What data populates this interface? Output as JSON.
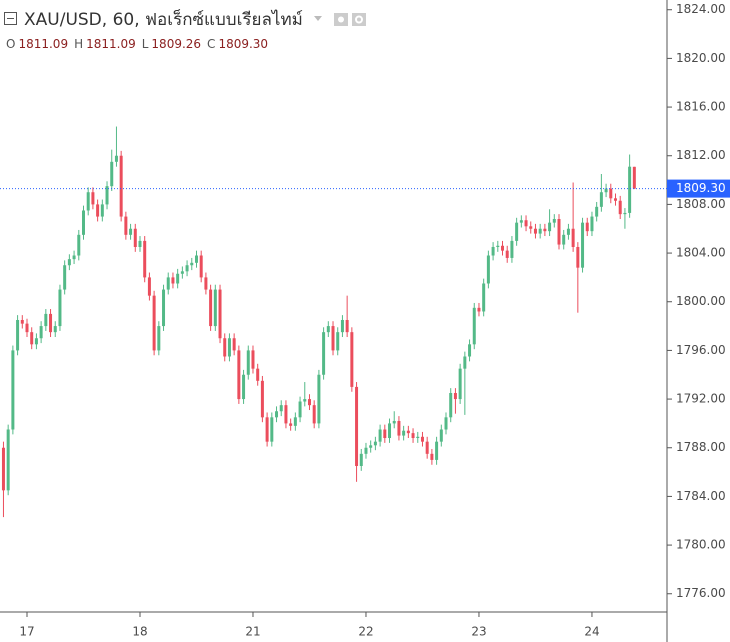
{
  "chart_data": {
    "type": "candlestick",
    "title": "XAU/USD, 60, ฟอเร็กซ์แบบเรียลไทม์",
    "legend": {
      "labels": [
        "O",
        "H",
        "L",
        "C"
      ],
      "values": [
        1811.09,
        1811.09,
        1809.26,
        1809.3
      ],
      "value_labels": [
        "1811.09",
        "1811.09",
        "1809.26",
        "1809.30"
      ]
    },
    "last_price": {
      "value": 1809.3,
      "label": "1809.30",
      "color": "#2962ff"
    },
    "up_color": "#53b987",
    "down_color": "#eb4d5c",
    "ylim": [
      1774.5,
      1824.8
    ],
    "yticks": [
      {
        "value": 1776,
        "label": "1776.00"
      },
      {
        "value": 1780,
        "label": "1780.00"
      },
      {
        "value": 1784,
        "label": "1784.00"
      },
      {
        "value": 1788,
        "label": "1788.00"
      },
      {
        "value": 1792,
        "label": "1792.00"
      },
      {
        "value": 1796,
        "label": "1796.00"
      },
      {
        "value": 1800,
        "label": "1800.00"
      },
      {
        "value": 1804,
        "label": "1804.00"
      },
      {
        "value": 1808,
        "label": "1808.00"
      },
      {
        "value": 1812,
        "label": "1812.00"
      },
      {
        "value": 1816,
        "label": "1816.00"
      },
      {
        "value": 1820,
        "label": "1820.00"
      },
      {
        "value": 1824,
        "label": "1824.00"
      }
    ],
    "categories": [
      null,
      null,
      null,
      null,
      null,
      "17",
      null,
      null,
      null,
      null,
      null,
      null,
      null,
      null,
      null,
      null,
      null,
      null,
      null,
      null,
      null,
      null,
      null,
      null,
      null,
      null,
      null,
      null,
      null,
      "18",
      null,
      null,
      null,
      null,
      null,
      null,
      null,
      null,
      null,
      null,
      null,
      null,
      null,
      null,
      null,
      null,
      null,
      null,
      null,
      null,
      null,
      null,
      null,
      "21",
      null,
      null,
      null,
      null,
      null,
      null,
      null,
      null,
      null,
      null,
      null,
      null,
      null,
      null,
      null,
      null,
      null,
      null,
      null,
      null,
      null,
      null,
      null,
      "22",
      null,
      null,
      null,
      null,
      null,
      null,
      null,
      null,
      null,
      null,
      null,
      null,
      null,
      null,
      null,
      null,
      null,
      null,
      null,
      null,
      null,
      null,
      null,
      "23",
      null,
      null,
      null,
      null,
      null,
      null,
      null,
      null,
      null,
      null,
      null,
      null,
      null,
      null,
      null,
      null,
      null,
      null,
      null,
      null,
      null,
      null,
      null,
      "24",
      null,
      null,
      null,
      null,
      null,
      null,
      null,
      null,
      null
    ],
    "open": [
      1788,
      1784.5,
      1789.5,
      1796,
      1798.5,
      1798.2,
      1797.5,
      1796.5,
      1797,
      1798,
      1799,
      1797.5,
      1798,
      1801,
      1803,
      1803.5,
      1803.8,
      1805.5,
      1807.5,
      1809,
      1808,
      1807,
      1808,
      1809.5,
      1811.5,
      1812,
      1807,
      1805.5,
      1806,
      1804.5,
      1805,
      1802,
      1800.5,
      1796,
      1798,
      1801,
      1802,
      1801.5,
      1802.3,
      1802.5,
      1803,
      1803.2,
      1803.8,
      1802,
      1801,
      1798,
      1801,
      1797,
      1795.5,
      1797,
      1796,
      1792,
      1794,
      1796,
      1794.5,
      1793.5,
      1790.5,
      1788.5,
      1790.5,
      1791,
      1791.5,
      1790,
      1789.8,
      1790.5,
      1791.8,
      1792,
      1791.5,
      1790,
      1794,
      1797.5,
      1798,
      1796,
      1797.5,
      1798.5,
      1797.5,
      1793,
      1786.5,
      1787.5,
      1788,
      1788.2,
      1788.5,
      1789.5,
      1788.8,
      1790,
      1790.2,
      1789,
      1789.4,
      1789.2,
      1788.8,
      1788.9,
      1788.5,
      1787.5,
      1787,
      1788.5,
      1789.5,
      1790.5,
      1792.5,
      1792,
      1794.5,
      1795.5,
      1796.5,
      1799.5,
      1799.2,
      1801.5,
      1803.8,
      1804.5,
      1804.6,
      1804.2,
      1803.6,
      1805,
      1806.5,
      1806.7,
      1806.2,
      1806,
      1805.6,
      1806,
      1805.8,
      1806.5,
      1806.8,
      1804.7,
      1805.5,
      1806,
      1804.5,
      1802.8,
      1806.5,
      1805.8,
      1807,
      1807.8,
      1809,
      1809.3,
      1808.5,
      1808.3,
      1807.2,
      1807.3,
      1811.09
    ],
    "high": [
      1788.5,
      1789.9,
      1796.4,
      1798.9,
      1798.9,
      1798.6,
      1797.9,
      1797.4,
      1798.4,
      1799.4,
      1799.4,
      1798.4,
      1801.4,
      1803.4,
      1803.9,
      1804.2,
      1805.9,
      1807.9,
      1809.4,
      1809.4,
      1808.4,
      1808.4,
      1809.9,
      1812.5,
      1814.4,
      1812.4,
      1807.4,
      1806.4,
      1806.4,
      1805.4,
      1805.4,
      1802.4,
      1800.9,
      1798.4,
      1801.4,
      1802.4,
      1802.4,
      1802.7,
      1802.9,
      1803.4,
      1803.6,
      1804.2,
      1804.2,
      1802.4,
      1801.4,
      1801.4,
      1801.4,
      1797.4,
      1797.4,
      1797.4,
      1796.4,
      1794.4,
      1796.4,
      1796.4,
      1794.9,
      1793.9,
      1790.9,
      1790.9,
      1791.4,
      1791.9,
      1791.9,
      1790.4,
      1790.9,
      1792.2,
      1793.4,
      1792.4,
      1791.9,
      1794.4,
      1797.9,
      1798.4,
      1798.4,
      1797.9,
      1798.9,
      1800.5,
      1797.9,
      1793.4,
      1787.9,
      1788.4,
      1788.6,
      1788.9,
      1789.9,
      1789.9,
      1790.4,
      1791,
      1790.6,
      1789.8,
      1789.8,
      1789.6,
      1789.3,
      1789.3,
      1788.9,
      1787.9,
      1788.9,
      1789.9,
      1790.9,
      1792.9,
      1792.9,
      1794.9,
      1795.9,
      1796.9,
      1799.9,
      1799.9,
      1801.9,
      1804.2,
      1804.9,
      1805,
      1805,
      1804.6,
      1805.4,
      1806.9,
      1807.1,
      1807.1,
      1806.6,
      1806.4,
      1806.4,
      1806.4,
      1807.6,
      1807.2,
      1807.2,
      1805.9,
      1806.4,
      1809.8,
      1804.9,
      1806.9,
      1806.9,
      1807.4,
      1808.2,
      1810.5,
      1809.7,
      1809.7,
      1808.9,
      1808.7,
      1807.7,
      1812.1,
      1811.09
    ],
    "low": [
      1782.3,
      1784.1,
      1789.1,
      1795.6,
      1797.8,
      1797.1,
      1796.1,
      1796.1,
      1796.6,
      1797.6,
      1797.1,
      1797.1,
      1797.6,
      1800.6,
      1802.6,
      1803.1,
      1803.4,
      1805.1,
      1807.1,
      1807.6,
      1806.6,
      1806.6,
      1807.6,
      1809.1,
      1811.1,
      1806.6,
      1805.1,
      1805.1,
      1804.1,
      1804.1,
      1801.6,
      1800.1,
      1795.6,
      1795.6,
      1797.6,
      1800.6,
      1801.1,
      1801.1,
      1801.9,
      1802.1,
      1802.6,
      1802.8,
      1801.6,
      1800.6,
      1797.6,
      1797.6,
      1796.6,
      1795.1,
      1795.1,
      1795.6,
      1791.6,
      1791.6,
      1793.6,
      1794.1,
      1793.1,
      1790.1,
      1788.1,
      1788.1,
      1790.1,
      1790.6,
      1789.6,
      1789.4,
      1789.4,
      1790.1,
      1791.4,
      1791.1,
      1789.6,
      1789.6,
      1793.6,
      1797.1,
      1795.6,
      1795.6,
      1797.1,
      1797.1,
      1792.6,
      1785.2,
      1786.1,
      1787.1,
      1787.6,
      1787.8,
      1788.1,
      1788.4,
      1788.4,
      1789.6,
      1788.6,
      1788.6,
      1788.8,
      1788.4,
      1788.4,
      1788.1,
      1787.1,
      1786.6,
      1786.6,
      1788.1,
      1789.1,
      1790.1,
      1790.8,
      1791.6,
      1790.7,
      1795.1,
      1796.1,
      1798.8,
      1798.8,
      1801.1,
      1803.4,
      1804.1,
      1803.8,
      1803.2,
      1803.2,
      1804.6,
      1806.1,
      1805.8,
      1805.6,
      1805.2,
      1805.2,
      1805.4,
      1805.4,
      1806.1,
      1804.3,
      1804.3,
      1805.1,
      1804.1,
      1799.1,
      1802.4,
      1805.4,
      1805.4,
      1806.6,
      1807.4,
      1808.6,
      1808.1,
      1807.9,
      1806.8,
      1806,
      1806.9,
      1809.26
    ],
    "close": [
      1784.5,
      1789.5,
      1796,
      1798.5,
      1798.2,
      1797.5,
      1796.5,
      1797,
      1798,
      1799,
      1797.5,
      1798,
      1801,
      1803,
      1803.5,
      1803.8,
      1805.5,
      1807.5,
      1809,
      1808,
      1807,
      1808,
      1809.5,
      1811.5,
      1812,
      1807,
      1805.5,
      1806,
      1804.5,
      1805,
      1802,
      1800.5,
      1796,
      1798,
      1801,
      1802,
      1801.5,
      1802.3,
      1802.5,
      1803,
      1803.2,
      1803.8,
      1802,
      1801,
      1798,
      1801,
      1797,
      1795.5,
      1797,
      1796,
      1792,
      1794,
      1796,
      1794.5,
      1793.5,
      1790.5,
      1788.5,
      1790.5,
      1791,
      1791.5,
      1790,
      1789.8,
      1790.5,
      1791.8,
      1792,
      1791.5,
      1790,
      1794,
      1797.5,
      1798,
      1796,
      1797.5,
      1798.5,
      1797.5,
      1793,
      1786.5,
      1787.5,
      1788,
      1788.2,
      1788.5,
      1789.5,
      1788.8,
      1790,
      1790.2,
      1789,
      1789.4,
      1789.2,
      1788.8,
      1788.9,
      1788.5,
      1787.5,
      1787,
      1788.5,
      1789.5,
      1790.5,
      1792.5,
      1792,
      1794.5,
      1795.5,
      1796.5,
      1799.5,
      1799.2,
      1801.5,
      1803.8,
      1804.5,
      1804.6,
      1804.2,
      1803.6,
      1805,
      1806.5,
      1806.7,
      1806.2,
      1806,
      1805.6,
      1806,
      1805.8,
      1806.5,
      1806.8,
      1804.7,
      1805.5,
      1806,
      1804.5,
      1802.8,
      1806.5,
      1805.8,
      1807,
      1807.8,
      1809,
      1809.3,
      1808.5,
      1808.3,
      1807.2,
      1807.3,
      1811.1,
      1809.3
    ]
  }
}
